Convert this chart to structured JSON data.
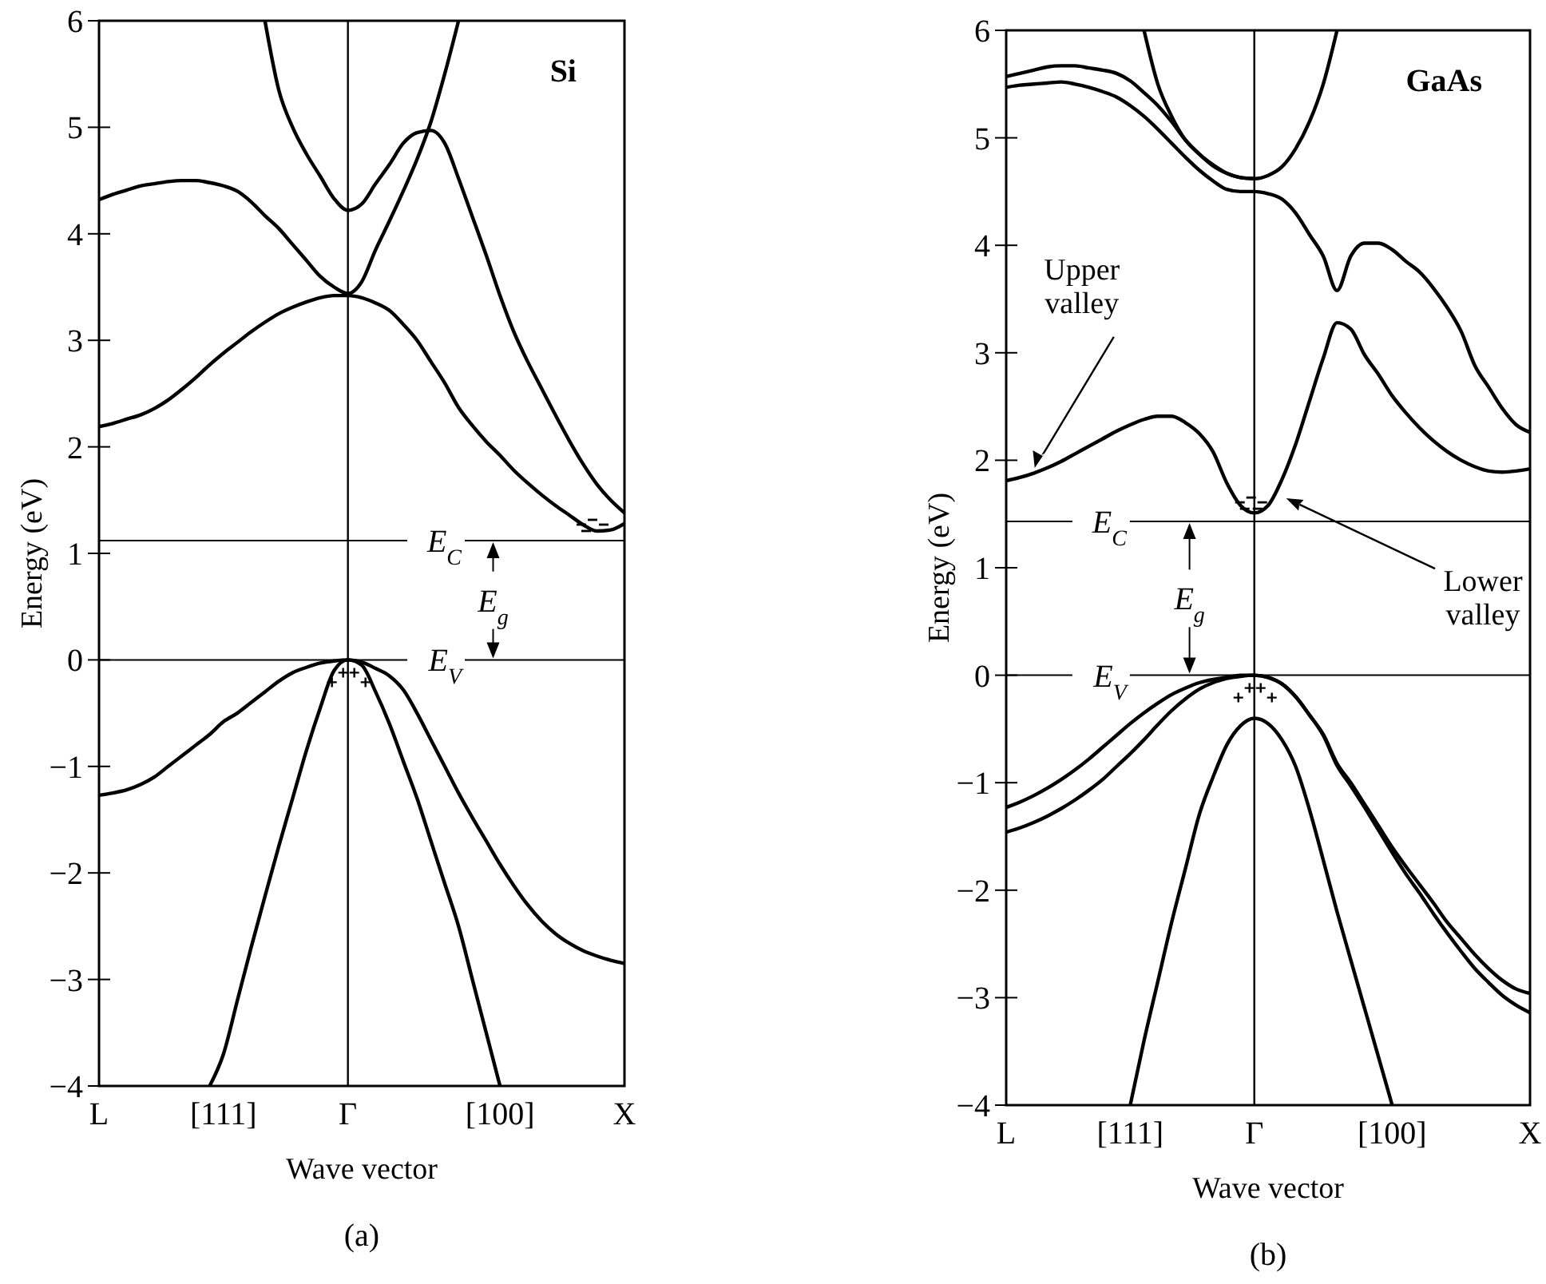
{
  "chart_data": [
    {
      "type": "line",
      "title": "Si",
      "subtitle": "(a)",
      "xlabel": "Wave vector",
      "ylabel": "Energy (eV)",
      "ylim": [
        -4,
        6
      ],
      "categories": [
        "L",
        null,
        null,
        null,
        null,
        null,
        null,
        null,
        null,
        "[111]",
        null,
        null,
        null,
        null,
        null,
        null,
        null,
        null,
        "Γ",
        null,
        null,
        null,
        null,
        null,
        null,
        null,
        null,
        null,
        null,
        "[100]",
        null,
        null,
        null,
        null,
        null,
        null,
        null,
        null,
        "X"
      ],
      "yticks": [
        -4,
        -3,
        -2,
        -1,
        0,
        1,
        2,
        3,
        4,
        5,
        6
      ],
      "grid": false,
      "marker": "none",
      "line_style": "solid",
      "series": [
        {
          "color": "#000000",
          "values": [
            null,
            null,
            null,
            null,
            null,
            null,
            null,
            null,
            null,
            null,
            null,
            null,
            6,
            5.35,
            5.0,
            4.75,
            4.54,
            4.33,
            4.22,
            4.28,
            4.47,
            4.65,
            4.85,
            4.95,
            4.97,
            4.85,
            4.52,
            4.16,
            3.8,
            3.42,
            3.08,
            2.8,
            2.55,
            2.3,
            2.06,
            1.84,
            1.65,
            1.5,
            1.38
          ]
        },
        {
          "color": "#000000",
          "values": [
            4.32,
            4.37,
            4.41,
            4.45,
            4.47,
            4.49,
            4.5,
            4.5,
            4.48,
            4.45,
            4.4,
            4.3,
            4.17,
            4.05,
            3.9,
            3.75,
            3.6,
            3.5,
            3.44,
            3.55,
            3.85,
            4.12,
            4.4,
            4.7,
            5.05,
            5.5,
            6,
            null,
            null,
            null,
            null,
            null,
            null,
            null,
            null,
            null,
            null,
            null,
            null
          ]
        },
        {
          "color": "#000000",
          "values": [
            2.19,
            2.22,
            2.26,
            2.3,
            2.36,
            2.44,
            2.54,
            2.65,
            2.77,
            2.88,
            2.98,
            3.08,
            3.17,
            3.25,
            3.31,
            3.36,
            3.4,
            3.42,
            3.42,
            3.4,
            3.35,
            3.28,
            3.15,
            3.0,
            2.8,
            2.6,
            2.37,
            2.2,
            2.05,
            1.92,
            1.78,
            1.66,
            1.55,
            1.45,
            1.36,
            1.27,
            1.21,
            1.22,
            1.28
          ]
        },
        {
          "color": "#000000",
          "values": [
            -1.27,
            -1.25,
            -1.22,
            -1.17,
            -1.1,
            -1.0,
            -0.9,
            -0.8,
            -0.7,
            -0.58,
            -0.5,
            -0.4,
            -0.3,
            -0.2,
            -0.12,
            -0.07,
            -0.03,
            -0.01,
            0,
            -0.02,
            -0.08,
            -0.15,
            -0.28,
            -0.5,
            -0.75,
            -1.0,
            -1.25,
            -1.48,
            -1.7,
            -1.92,
            -2.12,
            -2.3,
            -2.45,
            -2.57,
            -2.66,
            -2.73,
            -2.78,
            -2.82,
            -2.85
          ]
        },
        {
          "color": "#000000",
          "values": [
            null,
            null,
            null,
            null,
            null,
            null,
            null,
            null,
            -4,
            -3.7,
            -3.2,
            -2.7,
            -2.22,
            -1.75,
            -1.3,
            -0.85,
            -0.45,
            -0.1,
            0,
            -0.05,
            -0.3,
            -0.6,
            -0.95,
            -1.3,
            -1.7,
            -2.1,
            -2.5,
            -3.0,
            -3.5,
            -4,
            null,
            null,
            null,
            null,
            null,
            null,
            null,
            null,
            null
          ]
        }
      ],
      "ref_lines": [
        {
          "axis": "x",
          "value": "Γ"
        },
        {
          "axis": "y",
          "value": 1.12,
          "label": "E$_{C}$"
        },
        {
          "axis": "y",
          "value": 0,
          "label": "E$_{V}$"
        }
      ],
      "annotations": [
        "E$_{g}$"
      ]
    },
    {
      "type": "line",
      "title": "GaAs",
      "subtitle": "(b)",
      "xlabel": "Wave vector",
      "ylabel": "Energy (eV)",
      "ylim": [
        -4,
        6
      ],
      "categories": [
        "L",
        null,
        null,
        null,
        null,
        null,
        null,
        null,
        null,
        "[111]",
        null,
        null,
        null,
        null,
        null,
        null,
        null,
        null,
        "Γ",
        null,
        null,
        null,
        null,
        null,
        null,
        null,
        null,
        null,
        "[100]",
        null,
        null,
        null,
        null,
        null,
        null,
        null,
        null,
        null,
        "X"
      ],
      "yticks": [
        -4,
        -3,
        -2,
        -1,
        0,
        1,
        2,
        3,
        4,
        5,
        6
      ],
      "grid": false,
      "marker": "none",
      "line_style": "solid",
      "series": [
        {
          "color": "#000000",
          "values": [
            null,
            null,
            null,
            null,
            null,
            null,
            null,
            null,
            null,
            null,
            6,
            5.5,
            5.2,
            4.98,
            4.85,
            4.75,
            4.67,
            4.63,
            4.62,
            4.65,
            4.73,
            4.9,
            5.15,
            5.5,
            6,
            null,
            null,
            null,
            null,
            null,
            null,
            null,
            null,
            null,
            null,
            null,
            null,
            null,
            null
          ]
        },
        {
          "color": "#000000",
          "values": [
            5.57,
            5.6,
            5.63,
            5.66,
            5.67,
            5.67,
            5.65,
            5.63,
            5.6,
            5.53,
            5.42,
            5.3,
            5.15,
            4.98,
            4.85,
            4.74,
            4.67,
            4.63,
            4.62,
            null,
            null,
            null,
            null,
            null,
            null,
            null,
            null,
            null,
            null,
            null,
            null,
            null,
            null,
            null,
            null,
            null,
            null,
            null,
            null
          ]
        },
        {
          "color": "#000000",
          "values": [
            5.47,
            5.49,
            5.5,
            5.51,
            5.52,
            5.5,
            5.47,
            5.43,
            5.38,
            5.3,
            5.2,
            5.08,
            4.95,
            4.82,
            4.7,
            4.6,
            4.52,
            4.5,
            4.5,
            4.48,
            4.43,
            4.3,
            4.1,
            3.9,
            3.58,
            3.9,
            4.02,
            4.02,
            3.96,
            3.85,
            3.75,
            3.6,
            3.42,
            3.2,
            2.88,
            2.68,
            2.48,
            2.33,
            2.26
          ]
        },
        {
          "color": "#000000",
          "values": [
            1.81,
            1.84,
            1.88,
            1.93,
            1.99,
            2.06,
            2.13,
            2.2,
            2.27,
            2.33,
            2.38,
            2.41,
            2.41,
            2.35,
            2.25,
            2.08,
            1.79,
            1.58,
            1.51,
            1.58,
            1.82,
            2.15,
            2.55,
            2.95,
            3.28,
            3.22,
            2.98,
            2.8,
            2.6,
            2.44,
            2.3,
            2.18,
            2.08,
            2.0,
            1.94,
            1.9,
            1.89,
            1.9,
            1.92
          ]
        },
        {
          "color": "#000000",
          "values": [
            -1.23,
            -1.18,
            -1.12,
            -1.05,
            -0.97,
            -0.88,
            -0.78,
            -0.67,
            -0.56,
            -0.45,
            -0.35,
            -0.26,
            -0.18,
            -0.12,
            -0.07,
            -0.04,
            -0.02,
            0,
            0,
            -0.02,
            -0.08,
            -0.2,
            -0.37,
            -0.55,
            -0.82,
            -1.0,
            -1.2,
            -1.4,
            -1.6,
            -1.78,
            -1.95,
            -2.12,
            -2.3,
            -2.45,
            -2.6,
            -2.73,
            -2.84,
            -2.92,
            -2.96
          ]
        },
        {
          "color": "#000000",
          "values": [
            -1.46,
            -1.42,
            -1.37,
            -1.31,
            -1.24,
            -1.16,
            -1.07,
            -0.97,
            -0.85,
            -0.73,
            -0.6,
            -0.46,
            -0.33,
            -0.22,
            -0.13,
            -0.07,
            -0.03,
            -0.01,
            0,
            -0.02,
            -0.08,
            -0.2,
            -0.37,
            -0.56,
            -0.84,
            -1.03,
            -1.23,
            -1.44,
            -1.65,
            -1.85,
            -2.03,
            -2.22,
            -2.4,
            -2.57,
            -2.73,
            -2.86,
            -2.98,
            -3.07,
            -3.14
          ]
        },
        {
          "color": "#000000",
          "values": [
            null,
            null,
            null,
            null,
            null,
            null,
            null,
            null,
            null,
            -4,
            -3.4,
            -2.85,
            -2.3,
            -1.8,
            -1.3,
            -0.95,
            -0.65,
            -0.47,
            -0.4,
            -0.45,
            -0.6,
            -0.85,
            -1.25,
            -1.72,
            -2.2,
            -2.65,
            -3.1,
            -3.55,
            -4,
            null,
            null,
            null,
            null,
            null,
            null,
            null,
            null,
            null,
            null
          ]
        }
      ],
      "ref_lines": [
        {
          "axis": "x",
          "value": "Γ"
        },
        {
          "axis": "y",
          "value": 1.43,
          "label": "E$_{C}$"
        },
        {
          "axis": "y",
          "value": 0,
          "label": "E$_{V}$"
        }
      ],
      "annotations": [
        "Upper valley",
        "Lower valley",
        "E$_{g}$"
      ]
    }
  ]
}
